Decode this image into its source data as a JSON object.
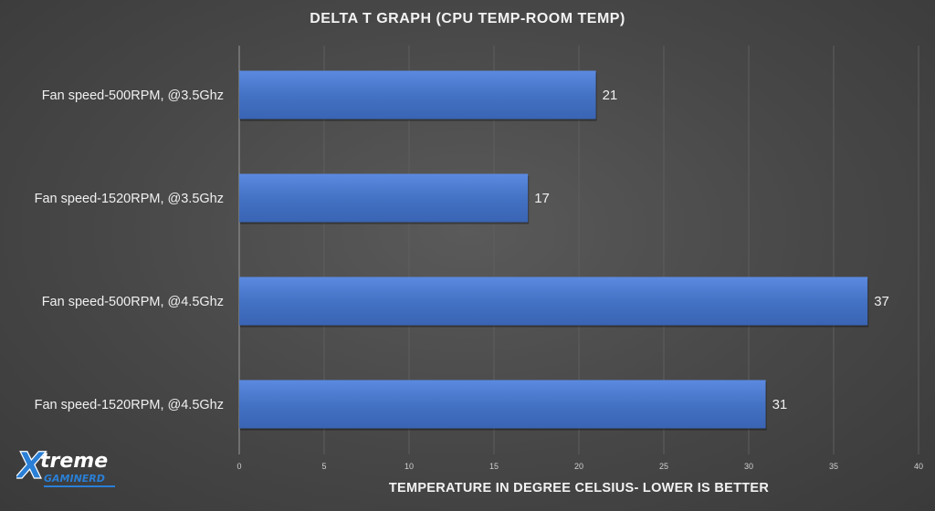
{
  "chart_data": {
    "type": "bar",
    "orientation": "horizontal",
    "title": "DELTA  T GRAPH  (CPU TEMP-ROOM TEMP)",
    "xlabel": "TEMPERATURE  IN  DEGREE  CELSIUS-  LOWER IS BETTER",
    "ylabel": "",
    "categories": [
      "Fan speed-500RPM, @3.5Ghz",
      "Fan speed-1520RPM, @3.5Ghz",
      "Fan speed-500RPM, @4.5Ghz",
      "Fan speed-1520RPM, @4.5Ghz"
    ],
    "values": [
      21,
      17,
      37,
      31
    ],
    "xlim": [
      0,
      40
    ],
    "xticks": [
      0,
      5,
      10,
      15,
      20,
      25,
      30,
      35,
      40
    ],
    "grid": true,
    "legend": "none",
    "bar_color": "#4472c4"
  },
  "logo": {
    "brand_top": "treme",
    "brand_initial": "X",
    "brand_bottom": "GAMINERD"
  }
}
